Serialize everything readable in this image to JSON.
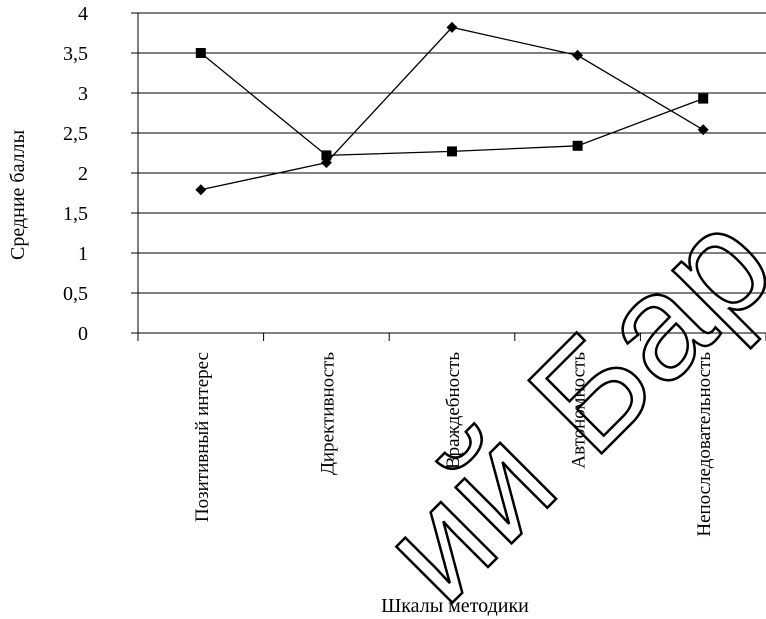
{
  "chart_data": {
    "type": "line",
    "categories": [
      "Позитивный интерес",
      "Директивность",
      "Враждебность",
      "Автономность",
      "Непоследовательность"
    ],
    "series": [
      {
        "marker": "square",
        "color": "#000000",
        "values": [
          3.5,
          2.22,
          2.27,
          2.34,
          2.93
        ]
      },
      {
        "marker": "diamond",
        "color": "#000000",
        "values": [
          1.79,
          2.13,
          3.82,
          3.47,
          2.54
        ]
      }
    ],
    "y_ticks": [
      "0",
      "0,5",
      "1",
      "1,5",
      "2",
      "2,5",
      "3",
      "3,5",
      "4"
    ],
    "ylim": [
      0,
      4
    ],
    "xlabel": "Шкалы методики",
    "ylabel": "Средние баллы",
    "grid": "horizontal",
    "legend": "none"
  },
  "watermark": {
    "text": "ий Бар",
    "color": "#000000"
  }
}
